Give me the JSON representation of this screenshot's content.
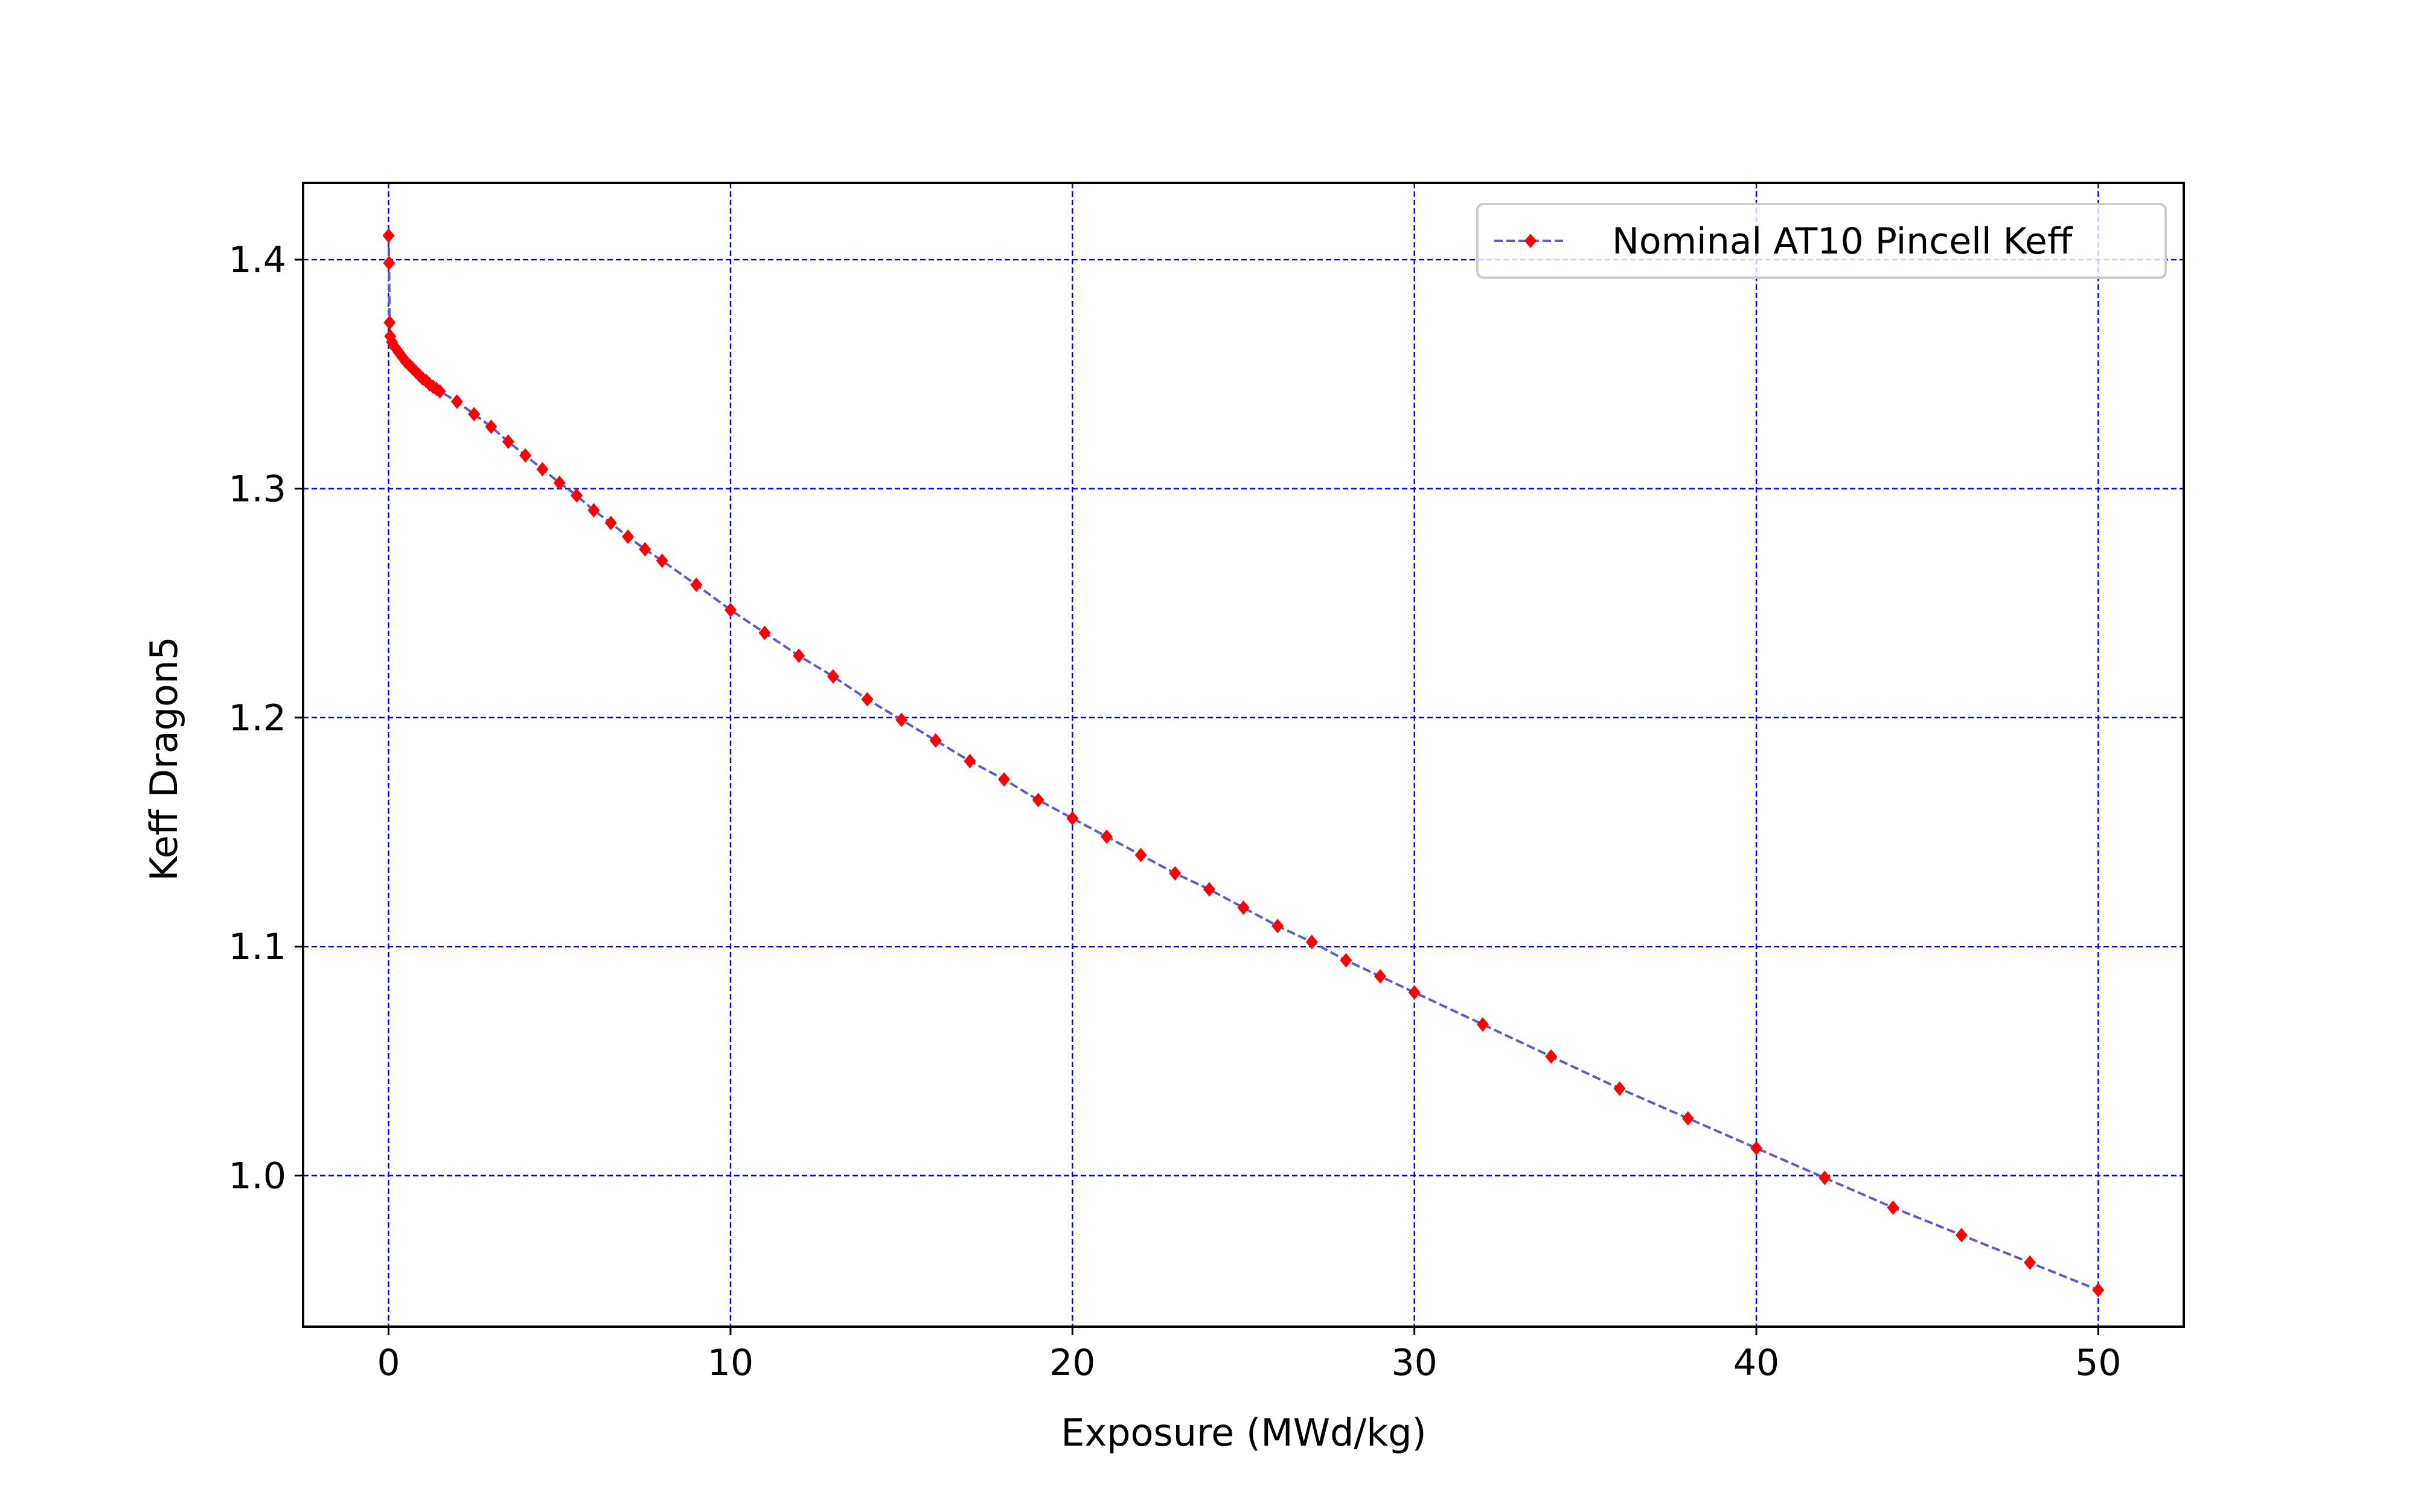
{
  "chart_data": {
    "type": "line",
    "xlabel": "Exposure (MWd/kg)",
    "ylabel": "Keff Dragon5",
    "xlim": [
      -2.5,
      52.5
    ],
    "ylim": [
      0.934,
      1.4335
    ],
    "xticks": [
      0,
      10,
      20,
      30,
      40,
      50
    ],
    "xtick_labels": [
      "0",
      "10",
      "20",
      "30",
      "40",
      "50"
    ],
    "yticks": [
      1.0,
      1.1,
      1.2,
      1.3,
      1.4
    ],
    "ytick_labels": [
      "1.0",
      "1.1",
      "1.2",
      "1.3",
      "1.4"
    ],
    "grid": true,
    "grid_style": "dashed",
    "grid_color": "#0000ff",
    "legend_position": "top-right",
    "series": [
      {
        "name": "Nominal AT10 Pincell Keff",
        "line_color": "#5b5bd6",
        "line_style": "dashed",
        "marker": "diamond",
        "marker_color": "#ff0000",
        "x": [
          0,
          0.015,
          0.03,
          0.05,
          0.1,
          0.2,
          0.3,
          0.4,
          0.5,
          0.6,
          0.7,
          0.8,
          0.9,
          1.0,
          1.1,
          1.2,
          1.3,
          1.4,
          1.5,
          2.0,
          2.5,
          3.0,
          3.5,
          4.0,
          4.5,
          5.0,
          5.5,
          6.0,
          6.5,
          7.0,
          7.5,
          8.0,
          9,
          10,
          11,
          12,
          13,
          14,
          15,
          16,
          17,
          18,
          19,
          20,
          21,
          22,
          23,
          24,
          25,
          26,
          27,
          28,
          29,
          30,
          32,
          34,
          36,
          38,
          40,
          42,
          44,
          46,
          48,
          50
        ],
        "y": [
          1.4105,
          1.3985,
          1.3725,
          1.3665,
          1.364,
          1.3615,
          1.3595,
          1.3575,
          1.3555,
          1.354,
          1.3525,
          1.351,
          1.3495,
          1.348,
          1.347,
          1.3455,
          1.3445,
          1.3435,
          1.3425,
          1.338,
          1.3325,
          1.327,
          1.3205,
          1.3145,
          1.3085,
          1.3025,
          1.297,
          1.2905,
          1.285,
          1.279,
          1.2735,
          1.2685,
          1.258,
          1.247,
          1.237,
          1.227,
          1.218,
          1.208,
          1.199,
          1.19,
          1.181,
          1.173,
          1.164,
          1.156,
          1.148,
          1.14,
          1.132,
          1.125,
          1.117,
          1.109,
          1.102,
          1.094,
          1.087,
          1.08,
          1.066,
          1.052,
          1.038,
          1.025,
          1.012,
          0.999,
          0.986,
          0.974,
          0.962,
          0.95
        ]
      }
    ]
  }
}
